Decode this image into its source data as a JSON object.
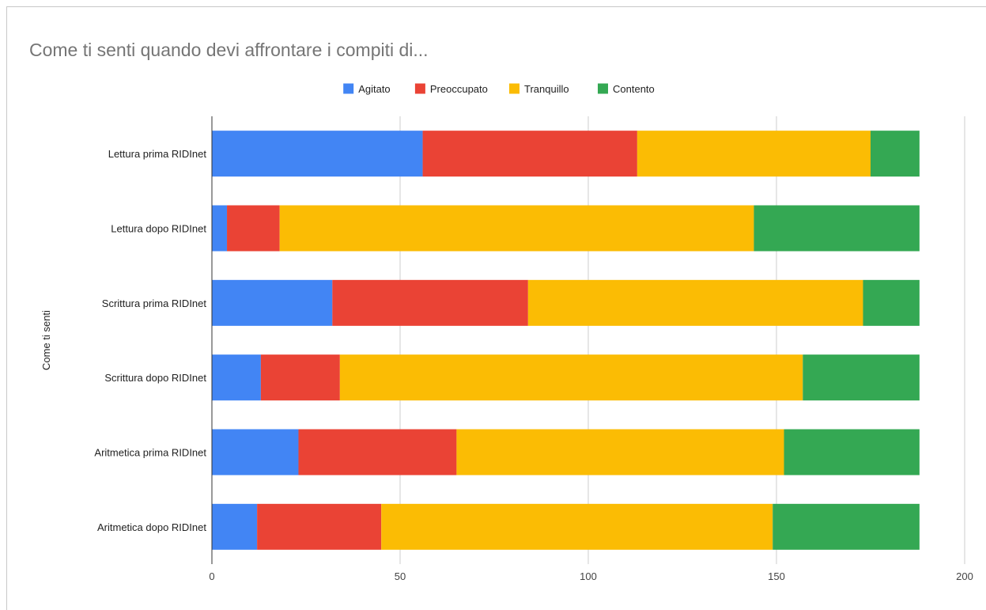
{
  "chart_data": {
    "type": "bar",
    "orientation": "horizontal",
    "stacked": true,
    "title": "Come ti senti quando devi affrontare i compiti di...",
    "ylabel": "Come ti senti",
    "xlabel": "",
    "categories": [
      "Lettura prima RIDInet",
      "Lettura dopo RIDInet",
      "Scrittura prima RIDInet",
      "Scrittura dopo RIDInet",
      "Aritmetica prima RIDInet",
      "Aritmetica dopo RIDInet"
    ],
    "series": [
      {
        "name": "Agitato",
        "color": "#4285f4",
        "values": [
          56,
          4,
          32,
          13,
          23,
          12
        ]
      },
      {
        "name": "Preoccupato",
        "color": "#ea4335",
        "values": [
          57,
          14,
          52,
          21,
          42,
          33
        ]
      },
      {
        "name": "Tranquillo",
        "color": "#fbbc04",
        "values": [
          62,
          126,
          89,
          123,
          87,
          104
        ]
      },
      {
        "name": "Contento",
        "color": "#34a853",
        "values": [
          13,
          44,
          15,
          31,
          36,
          39
        ]
      }
    ],
    "xlim": [
      0,
      200
    ],
    "xticks": [
      0,
      50,
      100,
      150,
      200
    ],
    "grid": true,
    "legend_position": "top"
  }
}
